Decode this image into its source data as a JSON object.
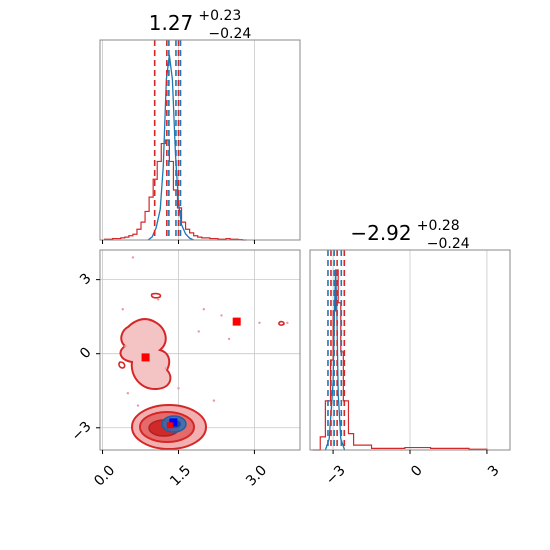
{
  "chart_data": {
    "type": "corner",
    "grid": true,
    "colors": {
      "red": "#d62728",
      "blue": "#1f77b4",
      "red_fill": "#f2b8b8",
      "red_mid": "#e36c6c",
      "blue_fill": "#2f6fb5"
    },
    "parameters": [
      {
        "title_main": "1.27",
        "title_sup": "+0.23",
        "title_sub": "−0.24"
      },
      {
        "title_main": "−2.92",
        "title_sup": "+0.28",
        "title_sub": "−0.24"
      }
    ],
    "x_ticks_param1": [
      {
        "value": 0.0,
        "label": "0.0"
      },
      {
        "value": 1.5,
        "label": "1.5"
      },
      {
        "value": 3.0,
        "label": "3.0"
      }
    ],
    "y_ticks_param2": [
      {
        "value": 3,
        "label": "3"
      },
      {
        "value": 0,
        "label": "0"
      },
      {
        "value": -3,
        "label": "−3"
      }
    ],
    "x_ticks_param2": [
      {
        "value": -3,
        "label": "−3"
      },
      {
        "value": 0,
        "label": "0"
      },
      {
        "value": 3,
        "label": "3"
      }
    ],
    "xlim_param1": [
      -0.05,
      3.9
    ],
    "xlim_param2": [
      -3.9,
      3.9
    ],
    "ylim_param2": [
      -3.9,
      4.2
    ],
    "hist_param1": {
      "red_bins": [
        0.08,
        0.16,
        0.24,
        0.32,
        0.4,
        0.48,
        0.56,
        0.64,
        0.72,
        0.8,
        0.88,
        0.96,
        1.04,
        1.12,
        1.2,
        1.28,
        1.36,
        1.44,
        1.52,
        1.6,
        1.68,
        1.76,
        1.84,
        1.92,
        2.0,
        2.08,
        2.16,
        2.24,
        2.32,
        2.4,
        2.48,
        2.56,
        2.64,
        2.72,
        2.8
      ],
      "red_counts": [
        0.1,
        0.1,
        0.2,
        0.2,
        0.3,
        0.4,
        0.6,
        0.8,
        1.5,
        2.5,
        4.0,
        6.0,
        8.5,
        11.0,
        13.5,
        14.0,
        11.0,
        7.0,
        4.5,
        2.5,
        1.5,
        1.0,
        0.6,
        0.4,
        0.3,
        0.3,
        0.2,
        0.2,
        0.1,
        0.1,
        0.2,
        0.1,
        0.1,
        0.05,
        0.0
      ],
      "blue_x": [
        0.9,
        0.98,
        1.06,
        1.14,
        1.2,
        1.26,
        1.32,
        1.38,
        1.44,
        1.5,
        1.56,
        1.64,
        1.72,
        1.8
      ],
      "blue_y": [
        0.0,
        0.5,
        2.0,
        5.0,
        12.0,
        26.0,
        30.0,
        26.0,
        14.0,
        6.0,
        2.5,
        1.0,
        0.3,
        0.0
      ],
      "red_quantiles": [
        1.03,
        1.27,
        1.5
      ],
      "blue_quantiles": [
        1.31,
        1.45,
        1.54
      ]
    },
    "hist_param2": {
      "red_x": [
        -3.8,
        -3.5,
        -3.3,
        -3.1,
        -3.0,
        -2.9,
        -2.8,
        -2.7,
        -2.6,
        -2.4,
        -2.2,
        -1.5,
        -0.2,
        0.3,
        0.8,
        1.3,
        1.8,
        2.3,
        3.0
      ],
      "red_y": [
        0.0,
        0.8,
        3.0,
        5.5,
        8.5,
        11.0,
        9.0,
        6.0,
        3.0,
        1.0,
        0.3,
        0.1,
        0.15,
        0.15,
        0.1,
        0.1,
        0.1,
        0.05,
        0.0
      ],
      "blue_x": [
        -3.3,
        -3.15,
        -3.0,
        -2.95,
        -2.9,
        -2.85,
        -2.8,
        -2.7,
        -2.55
      ],
      "blue_y": [
        0.0,
        1.0,
        6.0,
        12.0,
        16.0,
        12.0,
        5.0,
        1.0,
        0.0
      ],
      "red_quantiles": [
        -3.16,
        -2.92,
        -2.64
      ],
      "blue_quantiles": [
        -3.16,
        -2.92,
        -2.64
      ]
    },
    "scatter_2d": {
      "red_markers": [
        {
          "x": 0.85,
          "y": -0.15
        },
        {
          "x": 2.65,
          "y": 1.3
        }
      ],
      "blue_markers": [
        {
          "x": 1.4,
          "y": -2.78
        }
      ],
      "red_dots": [
        [
          0.6,
          3.9
        ],
        [
          1.1,
          2.2
        ],
        [
          2.35,
          1.55
        ],
        [
          3.1,
          1.25
        ],
        [
          3.65,
          1.25
        ],
        [
          2.0,
          1.8
        ],
        [
          2.5,
          0.6
        ],
        [
          0.4,
          1.8
        ],
        [
          1.9,
          0.9
        ],
        [
          0.5,
          -1.6
        ],
        [
          1.5,
          -1.4
        ],
        [
          2.2,
          -1.9
        ],
        [
          0.7,
          -2.1
        ],
        [
          0.45,
          0.3
        ],
        [
          1.25,
          -0.6
        ]
      ]
    }
  }
}
